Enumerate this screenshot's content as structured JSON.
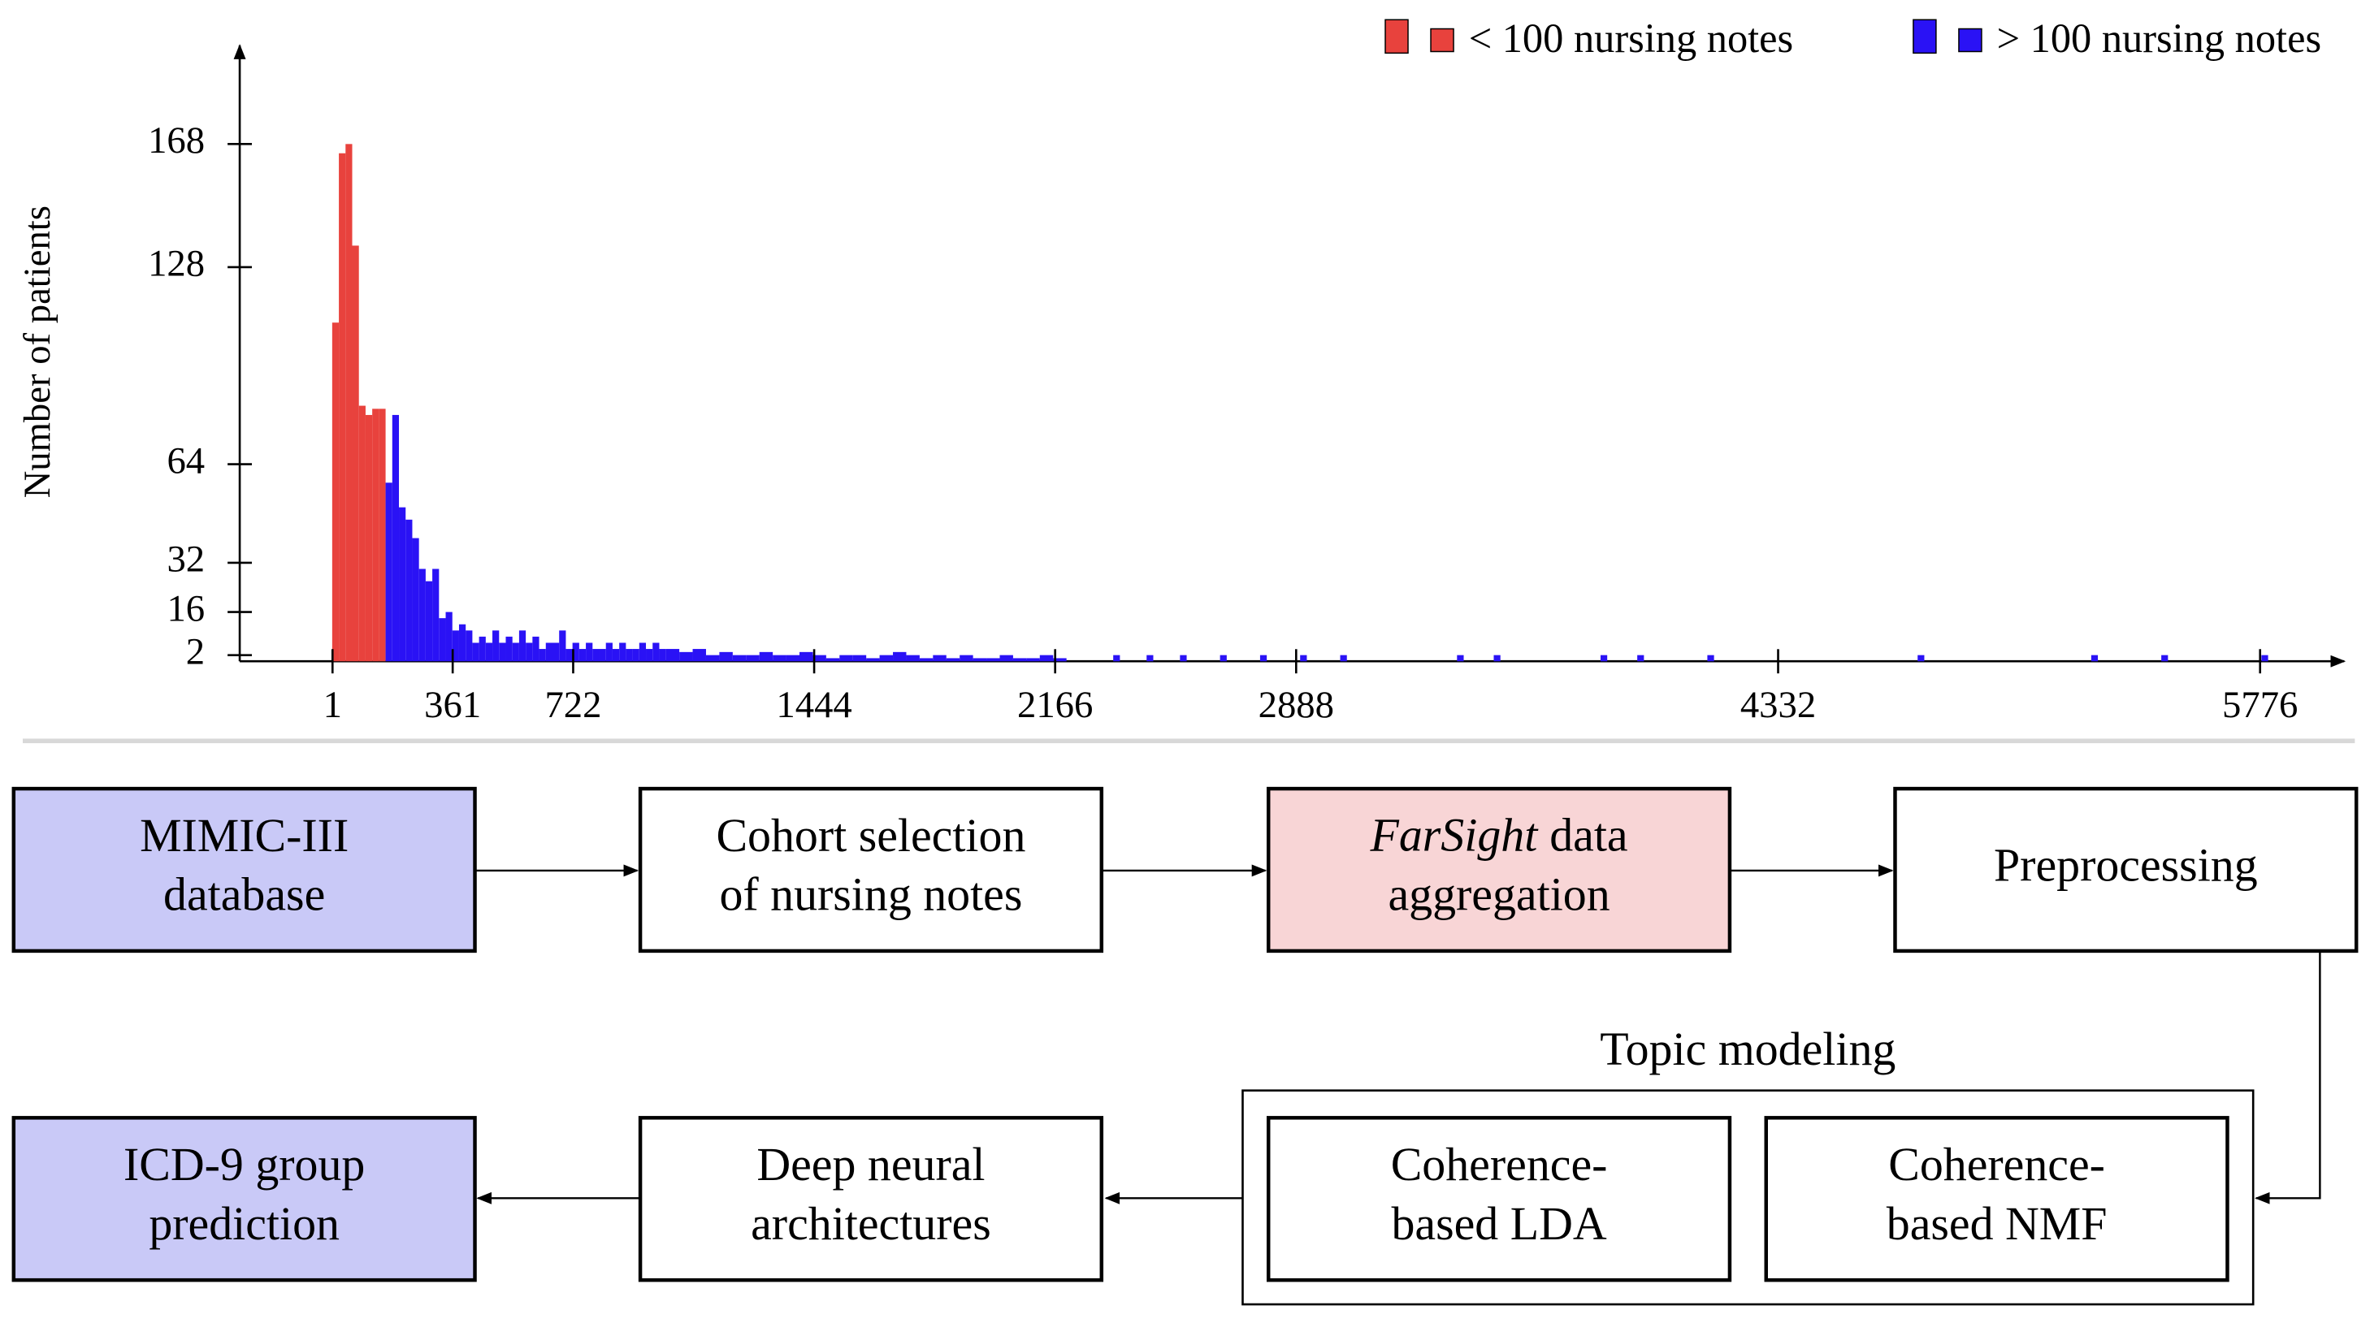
{
  "chart_data": {
    "type": "histogram",
    "ylabel": "Number of patients",
    "xlim": [
      -277,
      6028
    ],
    "ylim": [
      0,
      200
    ],
    "xticks": [
      1,
      361,
      722,
      1444,
      2166,
      2888,
      4332,
      5776
    ],
    "yticks": [
      2,
      16,
      32,
      64,
      128,
      168
    ],
    "legend": "top right",
    "series": [
      {
        "name": "< 100 nursing notes",
        "color": "#e8423d",
        "bins": [
          0,
          20,
          40,
          60,
          80,
          100,
          120,
          140,
          160
        ],
        "values": [
          110,
          165,
          168,
          135,
          83,
          80,
          82,
          82
        ]
      },
      {
        "name": "> 100 nursing notes",
        "color": "#2a12f5",
        "bins": [
          160,
          180,
          200,
          220,
          240,
          260,
          280,
          300,
          320,
          340,
          360,
          380,
          400,
          420,
          440,
          460,
          480,
          500,
          520,
          540,
          560,
          580,
          600,
          620,
          640,
          660,
          680,
          700,
          720,
          740,
          760,
          780,
          800,
          820,
          840,
          860,
          880,
          900,
          920,
          940,
          960,
          980,
          1000,
          1040,
          1080,
          1120,
          1160,
          1200,
          1240,
          1280,
          1320,
          1360,
          1400,
          1440,
          1480,
          1520,
          1560,
          1600,
          1640,
          1680,
          1720,
          1760,
          1800,
          1840,
          1880,
          1920,
          1960,
          2000,
          2040,
          2080,
          2120,
          2160,
          2200,
          2340,
          2360,
          2440,
          2460,
          2540,
          2560,
          2660,
          2680,
          2780,
          2800,
          2900,
          2920,
          3020,
          3040,
          3370,
          3390,
          3480,
          3500,
          3800,
          3820,
          3910,
          3930,
          4120,
          4140,
          4750,
          4770,
          5270,
          5290,
          5480,
          5500,
          5780,
          5800
        ],
        "values": [
          58,
          80,
          50,
          46,
          40,
          30,
          26,
          30,
          14,
          16,
          10,
          12,
          10,
          6,
          8,
          6,
          10,
          6,
          8,
          6,
          10,
          6,
          8,
          4,
          6,
          6,
          10,
          4,
          6,
          4,
          6,
          4,
          4,
          6,
          4,
          6,
          4,
          4,
          6,
          4,
          6,
          4,
          4,
          3,
          4,
          2,
          3,
          2,
          2,
          3,
          2,
          2,
          3,
          2,
          1,
          2,
          2,
          1,
          2,
          3,
          2,
          1,
          2,
          1,
          2,
          1,
          1,
          2,
          1,
          1,
          2,
          1,
          0,
          2,
          0,
          2,
          0,
          2,
          0,
          2,
          0,
          2,
          0,
          2,
          0,
          2,
          0,
          2,
          0,
          2,
          0,
          2,
          0,
          2,
          0,
          2,
          0,
          2,
          0,
          2,
          0,
          2,
          0,
          2
        ]
      }
    ]
  },
  "diagram": {
    "nodes": [
      {
        "lines": [
          "MIMIC-III",
          "database"
        ],
        "fill": "#c9c9f7"
      },
      {
        "lines": [
          "Cohort selection",
          "of nursing notes"
        ],
        "fill": "#ffffff"
      },
      {
        "lines": [
          {
            "italic": "FarSight",
            "text": "data"
          },
          "aggregation"
        ],
        "fill": "#f8d5d6"
      },
      {
        "lines": [
          "Preprocessing"
        ],
        "fill": "#ffffff"
      },
      {
        "lines": [
          "Coherence-",
          "based LDA"
        ],
        "fill": "#ffffff"
      },
      {
        "lines": [
          "Coherence-",
          "based NMF"
        ],
        "fill": "#ffffff"
      },
      {
        "lines": [
          "Deep neural",
          "architectures"
        ],
        "fill": "#ffffff"
      },
      {
        "lines": [
          "ICD-9 group",
          "prediction"
        ],
        "fill": "#c9c9f7"
      }
    ],
    "group": {
      "label": "Topic modeling"
    }
  }
}
